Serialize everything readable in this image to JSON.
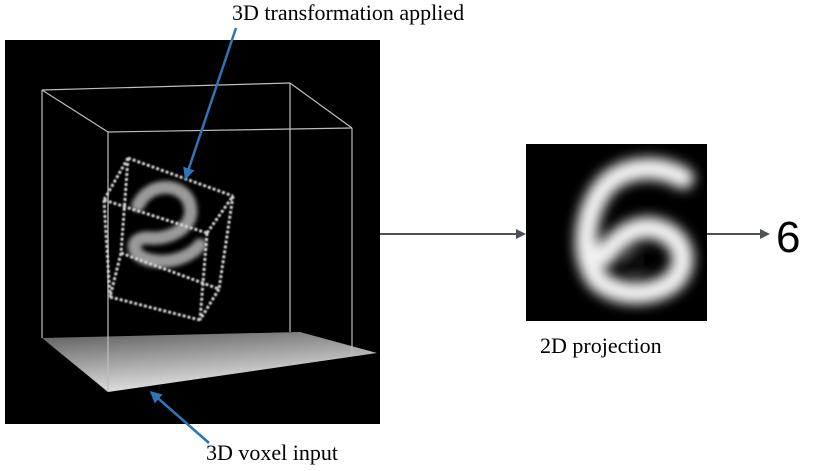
{
  "labels": {
    "transformation": "3D transformation applied",
    "voxel_input": "3D voxel input",
    "projection": "2D projection",
    "output_digit": "6"
  },
  "colors": {
    "panel_background": "#000000",
    "arrow_blue": "#2f74b5",
    "arrow_gray": "#4d5159",
    "cube_edges": "#cfcfcf"
  }
}
